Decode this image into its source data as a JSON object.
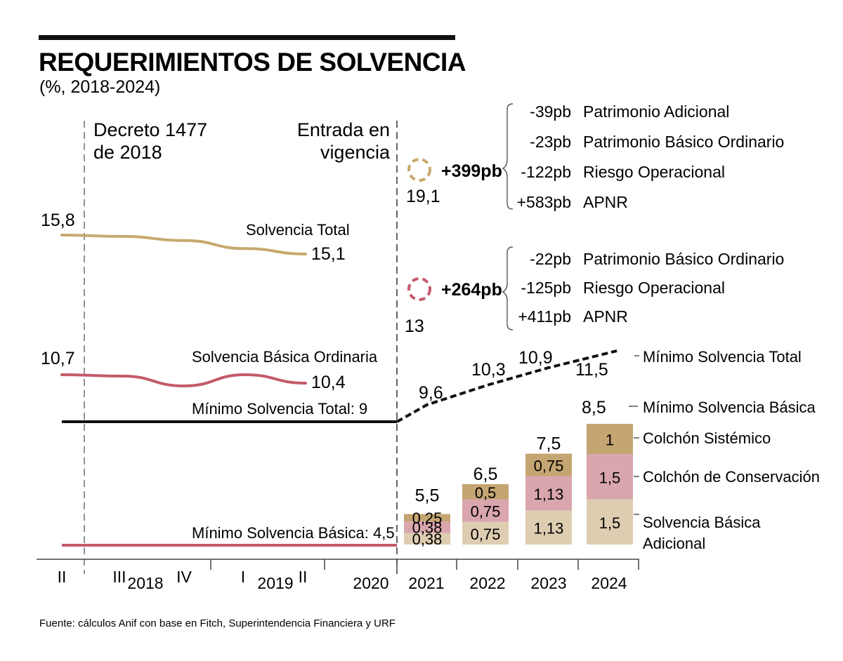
{
  "header": {
    "title": "REQUERIMIENTOS DE SOLVENCIA",
    "subtitle": "(%, 2018-2024)"
  },
  "annotations": {
    "decree": [
      "Decreto 1477",
      "de 2018"
    ],
    "entry": [
      "Entrada en",
      "vigencia"
    ]
  },
  "colors": {
    "solvencia_total": "#c8a86e",
    "solvencia_basica_ordinaria": "#c45a6a",
    "minimo_total": "#111111",
    "minimo_basica": "#c45a6a",
    "colchon_sistemico": "#c5a572",
    "colchon_conservacion": "#d9a6ae",
    "solvencia_basica_adicional": "#dfcdb2"
  },
  "breakdowns": [
    {
      "target_value": "19,1",
      "delta": "+399pb",
      "marker_color": "#c8a86e",
      "items": [
        {
          "value": "-39pb",
          "label": "Patrimonio Adicional"
        },
        {
          "value": "-23pb",
          "label": "Patrimonio Básico Ordinario"
        },
        {
          "value": "-122pb",
          "label": "Riesgo Operacional"
        },
        {
          "value": "+583pb",
          "label": "APNR"
        }
      ]
    },
    {
      "target_value": "13",
      "delta": "+264pb",
      "marker_color": "#c45a6a",
      "items": [
        {
          "value": "-22pb",
          "label": "Patrimonio Básico Ordinario"
        },
        {
          "value": "-125pb",
          "label": "Riesgo Operacional"
        },
        {
          "value": "+411pb",
          "label": "APNR"
        }
      ]
    }
  ],
  "chart_data": {
    "type": "line",
    "title": "REQUERIMIENTOS DE SOLVENCIA",
    "subtitle": "(%, 2018-2024)",
    "x_ticks": [
      {
        "label": "II",
        "kind": "quarter"
      },
      {
        "label": "III",
        "kind": "quarter"
      },
      {
        "label": "2018",
        "kind": "year"
      },
      {
        "label": "IV",
        "kind": "quarter"
      },
      {
        "label": "I",
        "kind": "quarter"
      },
      {
        "label": "2019",
        "kind": "year"
      },
      {
        "label": "II",
        "kind": "quarter"
      },
      {
        "label": "2020",
        "kind": "year"
      },
      {
        "label": "2021",
        "kind": "year"
      },
      {
        "label": "2022",
        "kind": "year"
      },
      {
        "label": "2023",
        "kind": "year"
      },
      {
        "label": "2024",
        "kind": "year"
      }
    ],
    "lines": [
      {
        "name": "Solvencia Total",
        "x": [
          "2018-II",
          "2018-III",
          "2018-IV",
          "2019-I",
          "2019-II"
        ],
        "values": [
          15.8,
          15.75,
          15.6,
          15.3,
          15.1
        ],
        "start_label": "15,8",
        "end_label": "15,1"
      },
      {
        "name": "Solvencia Básica Ordinaria",
        "x": [
          "2018-II",
          "2018-III",
          "2018-IV",
          "2019-I",
          "2019-II"
        ],
        "values": [
          10.7,
          10.65,
          10.3,
          10.7,
          10.4
        ],
        "start_label": "10,7",
        "end_label": "10,4"
      },
      {
        "name": "Mínimo Solvencia Total",
        "label": "Mínimo Solvencia Total: 9",
        "x": [
          "2018-II",
          "2020",
          "2021",
          "2022",
          "2023",
          "2024"
        ],
        "values": [
          9,
          9,
          9.6,
          10.3,
          10.9,
          11.5
        ],
        "point_labels": [
          "9,6",
          "10,3",
          "10,9",
          "11,5"
        ],
        "legend": "Mínimo Solvencia Total"
      },
      {
        "name": "Mínimo Solvencia Básica",
        "label": "Mínimo Solvencia Básica: 4,5",
        "x": [
          "2018-II",
          "2020"
        ],
        "values": [
          4.5,
          4.5
        ]
      }
    ],
    "stacked_bars": {
      "categories": [
        "2021",
        "2022",
        "2023",
        "2024"
      ],
      "series": [
        {
          "name": "Solvencia Básica Adicional",
          "values": [
            0.38,
            0.75,
            1.13,
            1.5
          ],
          "labels": [
            "0,38",
            "0,75",
            "1,13",
            "1,5"
          ]
        },
        {
          "name": "Colchón de Conservación",
          "values": [
            0.38,
            0.75,
            1.13,
            1.5
          ],
          "labels": [
            "0,38",
            "0,75",
            "1,13",
            "1,5"
          ]
        },
        {
          "name": "Colchón Sistémico",
          "values": [
            0.25,
            0.5,
            0.75,
            1
          ],
          "labels": [
            "0,25",
            "0,5",
            "0,75",
            "1"
          ]
        }
      ],
      "baseline": 4.5,
      "totals": [
        "5,5",
        "6,5",
        "7,5",
        "8,5"
      ],
      "total_legend": "Mínimo Solvencia Básica",
      "legend": [
        "Colchón Sistémico",
        "Colchón de Conservación",
        "Solvencia Básica Adicional"
      ]
    },
    "xlabel": "",
    "ylabel": "%",
    "grid": false
  },
  "source": "Fuente: cálculos Anif con base en Fitch, Superintendencia Financiera y URF"
}
